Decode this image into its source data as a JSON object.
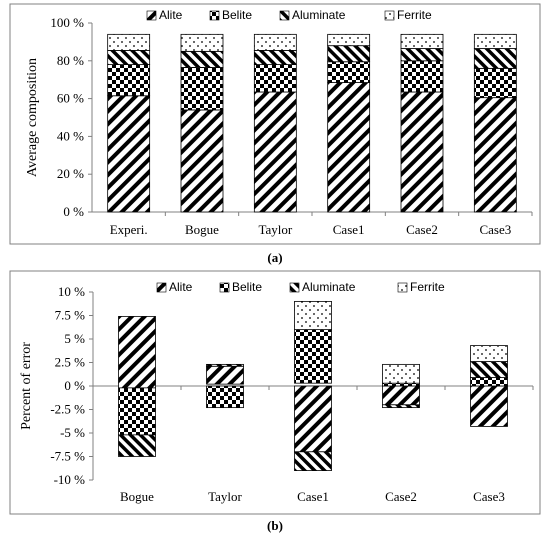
{
  "colors": {
    "frame": "#808080",
    "bar_fill": "#ffffff",
    "ink": "#000000"
  },
  "legend_series": [
    {
      "name": "Alite",
      "pattern": "diagonal-hatch"
    },
    {
      "name": "Belite",
      "pattern": "checkerboard"
    },
    {
      "name": "Aluminate",
      "pattern": "wide-diagonal-hatch"
    },
    {
      "name": "Ferrite",
      "pattern": "dots"
    }
  ],
  "chart_data": [
    {
      "type": "bar",
      "stacked": true,
      "panel_label": "(a)",
      "ylabel": "Average composition",
      "ylim": [
        0,
        100
      ],
      "yticks": [
        "0 %",
        "20 %",
        "40 %",
        "60 %",
        "80 %",
        "100 %"
      ],
      "ytick_values": [
        0,
        20,
        40,
        60,
        80,
        100
      ],
      "grid": false,
      "legend_position": "top",
      "categories": [
        "Experi.",
        "Bogue",
        "Taylor",
        "Case1",
        "Case2",
        "Case3"
      ],
      "series": [
        {
          "name": "Alite",
          "values": [
            61.5,
            54,
            63.5,
            68.5,
            63.5,
            60.5
          ]
        },
        {
          "name": "Belite",
          "values": [
            16.5,
            22.5,
            14.5,
            11,
            16.5,
            15.5
          ]
        },
        {
          "name": "Aluminate",
          "values": [
            7.5,
            8.5,
            7.5,
            8.5,
            6.5,
            10.5
          ]
        },
        {
          "name": "Ferrite",
          "values": [
            8.5,
            9,
            8.5,
            6,
            7.5,
            7.5
          ]
        }
      ]
    },
    {
      "type": "bar",
      "stacked": true,
      "panel_label": "(b)",
      "ylabel": "Percent of error",
      "ylim": [
        -10,
        10
      ],
      "yticks": [
        "-10 %",
        "-7.5 %",
        "-5 %",
        "-2.5 %",
        "0 %",
        "2.5 %",
        "5 %",
        "7.5 %",
        "10 %"
      ],
      "ytick_values": [
        -10,
        -7.5,
        -5,
        -2.5,
        0,
        2.5,
        5,
        7.5,
        10
      ],
      "grid": false,
      "legend_position": "top",
      "categories": [
        "Bogue",
        "Taylor",
        "Case1",
        "Case2",
        "Case3"
      ],
      "series": [
        {
          "name": "Alite",
          "values": [
            -7.5,
            2.1,
            7.0,
            2.0,
            1.0
          ]
        },
        {
          "name": "Belite",
          "values": [
            7.4,
            -2.3,
            -8.9,
            0.2,
            -4.3
          ]
        },
        {
          "name": "Aluminate",
          "values": [
            0.8,
            0,
            1.0,
            -0.8,
            3.0
          ]
        },
        {
          "name": "Ferrite",
          "values": [
            0.5,
            0,
            -0.9,
            0.2,
            1.1
          ]
        }
      ],
      "stack_bounds": [
        {
          "segments": [
            [
              -0.2,
              7.4
            ],
            [
              -5.2,
              -0.2
            ],
            [
              -7.5,
              -5.2
            ]
          ]
        },
        {
          "segments": [
            [
              0.2,
              2.1
            ],
            [
              -2.3,
              0.0
            ],
            [
              2.1,
              2.3
            ]
          ]
        },
        {
          "segments": [
            [
              -7.0,
              0.0
            ],
            [
              0.3,
              6.0
            ],
            [
              -9.0,
              -7.0
            ],
            [
              6.0,
              9.0
            ]
          ]
        },
        {
          "segments": [
            [
              -2.0,
              0.0
            ],
            [
              0.0,
              0.3
            ],
            [
              -2.3,
              -2.0
            ],
            [
              0.3,
              2.3
            ]
          ]
        },
        {
          "segments": [
            [
              -4.3,
              0.0
            ],
            [
              0.0,
              0.9
            ],
            [
              0.9,
              2.6
            ],
            [
              2.6,
              4.3
            ]
          ]
        }
      ]
    }
  ]
}
